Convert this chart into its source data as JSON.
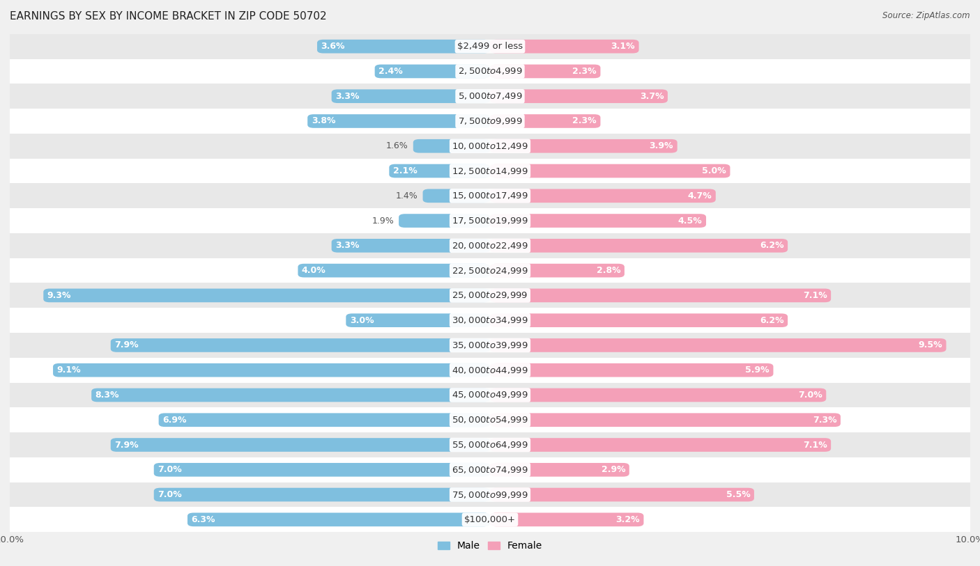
{
  "title": "EARNINGS BY SEX BY INCOME BRACKET IN ZIP CODE 50702",
  "source": "Source: ZipAtlas.com",
  "categories": [
    "$2,499 or less",
    "$2,500 to $4,999",
    "$5,000 to $7,499",
    "$7,500 to $9,999",
    "$10,000 to $12,499",
    "$12,500 to $14,999",
    "$15,000 to $17,499",
    "$17,500 to $19,999",
    "$20,000 to $22,499",
    "$22,500 to $24,999",
    "$25,000 to $29,999",
    "$30,000 to $34,999",
    "$35,000 to $39,999",
    "$40,000 to $44,999",
    "$45,000 to $49,999",
    "$50,000 to $54,999",
    "$55,000 to $64,999",
    "$65,000 to $74,999",
    "$75,000 to $99,999",
    "$100,000+"
  ],
  "male_values": [
    3.6,
    2.4,
    3.3,
    3.8,
    1.6,
    2.1,
    1.4,
    1.9,
    3.3,
    4.0,
    9.3,
    3.0,
    7.9,
    9.1,
    8.3,
    6.9,
    7.9,
    7.0,
    7.0,
    6.3
  ],
  "female_values": [
    3.1,
    2.3,
    3.7,
    2.3,
    3.9,
    5.0,
    4.7,
    4.5,
    6.2,
    2.8,
    7.1,
    6.2,
    9.5,
    5.9,
    7.0,
    7.3,
    7.1,
    2.9,
    5.5,
    3.2
  ],
  "male_color": "#7fbfdf",
  "female_color": "#f4a0b8",
  "axis_max": 10.0,
  "background_color": "#f0f0f0",
  "row_color_light": "#e8e8e8",
  "row_color_dark": "#ffffff",
  "label_fontsize": 9.0,
  "cat_fontsize": 9.5,
  "title_fontsize": 11,
  "bar_height": 0.55
}
